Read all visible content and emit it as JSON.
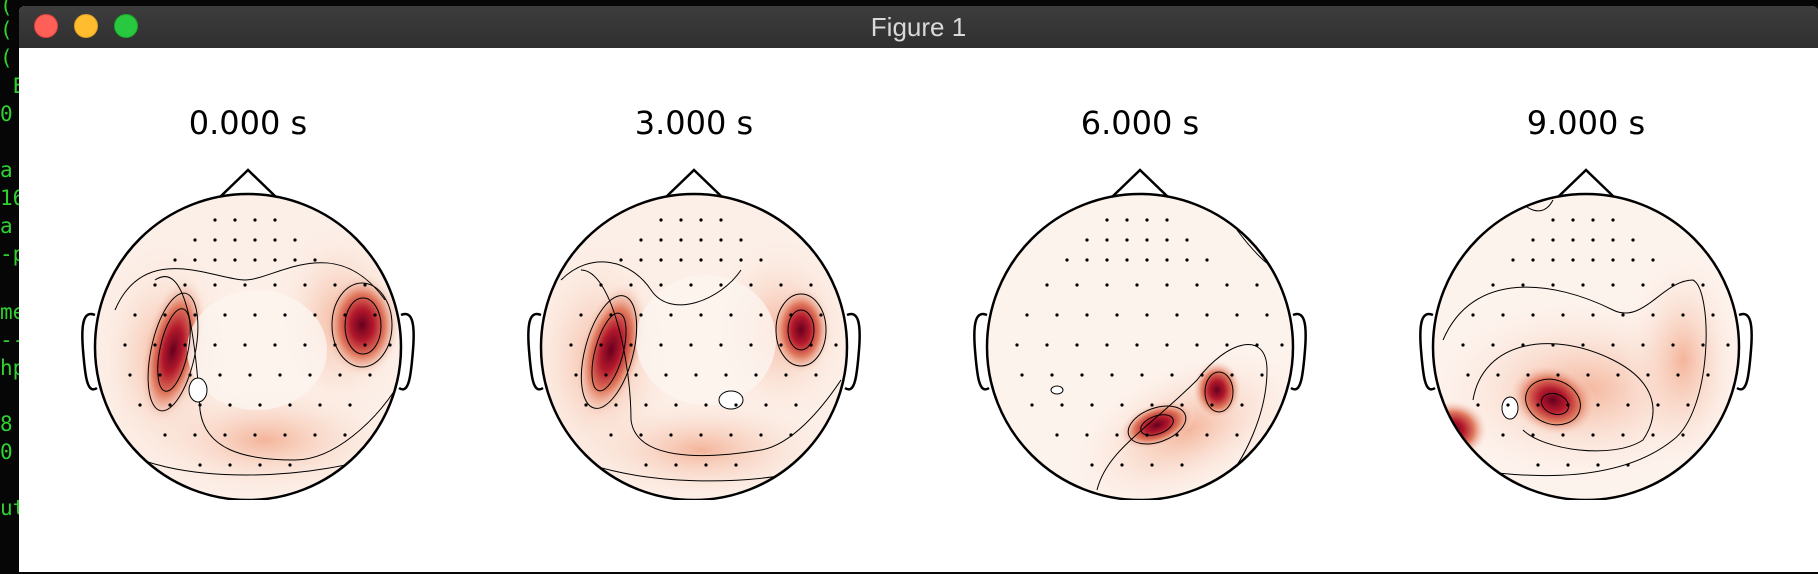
{
  "window": {
    "title": "Figure 1"
  },
  "terminal": {
    "lines": [
      "(",
      "(",
      "(",
      " E",
      "0",
      "",
      "a",
      "16",
      "a",
      "-p",
      "",
      "me",
      "--",
      "hp",
      "",
      "8",
      "0",
      "",
      "ut"
    ]
  },
  "topomaps": [
    {
      "title": "0.000 s"
    },
    {
      "title": "3.000 s"
    },
    {
      "title": "6.000 s"
    },
    {
      "title": "9.000 s"
    }
  ],
  "colors": {
    "titlebar": "#353535",
    "close": "#fe5f57",
    "minimize": "#febc2e",
    "maximize": "#28c840",
    "terminal_text": "#2fd12f",
    "heat_low": "#fdf4ef",
    "heat_mid": "#f2a58b",
    "heat_high": "#b2182b"
  }
}
